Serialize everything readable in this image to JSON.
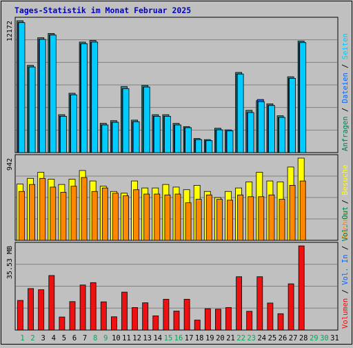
{
  "title": "Tages-Statistik im Monat Februar 2025",
  "colors": {
    "background": "#c0c0c0",
    "title": "#0000cc",
    "grid": "#808080",
    "hits": "#00ccff",
    "files": "#0066ff",
    "pages": "#00ffff",
    "visits": "#ffff00",
    "sites": "#ff8800",
    "kbytes": "#ee1111",
    "weekday_label": "#006600",
    "weekend_label": "#00aa55"
  },
  "chart_data": [
    {
      "type": "bar",
      "name": "requests-panel",
      "y_max_label": "12172",
      "ylim": [
        0,
        12172
      ],
      "series_label_right": [
        {
          "text": "Anfragen",
          "color": "#008050"
        },
        {
          "text": " / ",
          "color": "#000000"
        },
        {
          "text": "Dateien",
          "color": "#0066ff"
        },
        {
          "text": " / ",
          "color": "#000000"
        },
        {
          "text": "Seiten",
          "color": "#00ccff"
        }
      ],
      "series": [
        {
          "name": "Anfragen",
          "values": [
            12172,
            8050,
            10600,
            11000,
            3500,
            5480,
            10200,
            10350,
            2700,
            2950,
            6100,
            3000,
            6200,
            3500,
            3500,
            2700,
            2400,
            1300,
            1200,
            2250,
            2100,
            7400,
            3900,
            4800,
            4500,
            3400,
            7000,
            10300
          ]
        },
        {
          "name": "Dateien",
          "values": [
            12000,
            7900,
            10450,
            10850,
            3350,
            5330,
            10050,
            10200,
            2550,
            2800,
            5900,
            2850,
            6050,
            3350,
            3350,
            2550,
            2300,
            1200,
            1100,
            2100,
            2000,
            7250,
            3700,
            4900,
            4350,
            3250,
            6850,
            10150
          ]
        },
        {
          "name": "Seiten",
          "values": [
            12000,
            7900,
            10450,
            10850,
            3350,
            5330,
            10050,
            10200,
            2550,
            2800,
            5900,
            2850,
            6050,
            3350,
            3350,
            2550,
            2300,
            1200,
            1100,
            2100,
            2000,
            7250,
            3700,
            4700,
            4350,
            3250,
            6850,
            10150
          ]
        }
      ]
    },
    {
      "type": "bar",
      "name": "visits-panel",
      "y_max_label": "942",
      "ylim": [
        0,
        942
      ],
      "series_label_right": [
        {
          "text": "Rechner",
          "color": "#ff8800"
        },
        {
          "text": " / ",
          "color": "#000000"
        },
        {
          "text": "Besuche",
          "color": "#ffff00"
        }
      ],
      "series": [
        {
          "name": "Besuche",
          "values": [
            645,
            710,
            780,
            700,
            640,
            700,
            800,
            680,
            620,
            560,
            540,
            680,
            600,
            600,
            640,
            610,
            580,
            630,
            560,
            490,
            560,
            600,
            670,
            780,
            680,
            670,
            840,
            942
          ]
        },
        {
          "name": "Rechner",
          "values": [
            560,
            640,
            710,
            610,
            550,
            620,
            720,
            560,
            600,
            540,
            510,
            580,
            530,
            530,
            520,
            530,
            430,
            470,
            520,
            470,
            460,
            520,
            500,
            500,
            520,
            470,
            630,
            680
          ]
        }
      ]
    },
    {
      "type": "bar",
      "name": "volume-panel",
      "y_max_label": "35.53 MB",
      "ylim": [
        0,
        35.53
      ],
      "series_label_right": [
        {
          "text": "Volumen",
          "color": "#ee1111"
        },
        {
          "text": " / ",
          "color": "#000000"
        },
        {
          "text": "Vol. In",
          "color": "#0066ff"
        },
        {
          "text": " / ",
          "color": "#000000"
        },
        {
          "text": "Vol. Out",
          "color": "#008050"
        }
      ],
      "series": [
        {
          "name": "Volumen",
          "values": [
            12.5,
            17.5,
            17.0,
            23.0,
            5.5,
            12.0,
            19.0,
            20.0,
            11.9,
            5.6,
            16.0,
            9.5,
            11.5,
            6.0,
            13.0,
            8.0,
            13.0,
            4.2,
            9.0,
            8.8,
            9.5,
            22.5,
            7.9,
            22.5,
            11.4,
            6.9,
            19.5,
            35.5
          ]
        }
      ]
    }
  ],
  "days": [
    {
      "label": "1",
      "weekend": true
    },
    {
      "label": "2",
      "weekend": true
    },
    {
      "label": "3",
      "weekend": false
    },
    {
      "label": "4",
      "weekend": false
    },
    {
      "label": "5",
      "weekend": false
    },
    {
      "label": "6",
      "weekend": false
    },
    {
      "label": "7",
      "weekend": false
    },
    {
      "label": "8",
      "weekend": true
    },
    {
      "label": "9",
      "weekend": true
    },
    {
      "label": "10",
      "weekend": false
    },
    {
      "label": "11",
      "weekend": false
    },
    {
      "label": "12",
      "weekend": false
    },
    {
      "label": "13",
      "weekend": false
    },
    {
      "label": "14",
      "weekend": false
    },
    {
      "label": "15",
      "weekend": true
    },
    {
      "label": "16",
      "weekend": true
    },
    {
      "label": "17",
      "weekend": false
    },
    {
      "label": "18",
      "weekend": false
    },
    {
      "label": "19",
      "weekend": false
    },
    {
      "label": "20",
      "weekend": false
    },
    {
      "label": "21",
      "weekend": false
    },
    {
      "label": "22",
      "weekend": true
    },
    {
      "label": "23",
      "weekend": true
    },
    {
      "label": "24",
      "weekend": false
    },
    {
      "label": "25",
      "weekend": false
    },
    {
      "label": "26",
      "weekend": false
    },
    {
      "label": "27",
      "weekend": false
    },
    {
      "label": "28",
      "weekend": false
    },
    {
      "label": "29",
      "weekend": true
    },
    {
      "label": "30",
      "weekend": true
    },
    {
      "label": "31",
      "weekend": false
    }
  ]
}
